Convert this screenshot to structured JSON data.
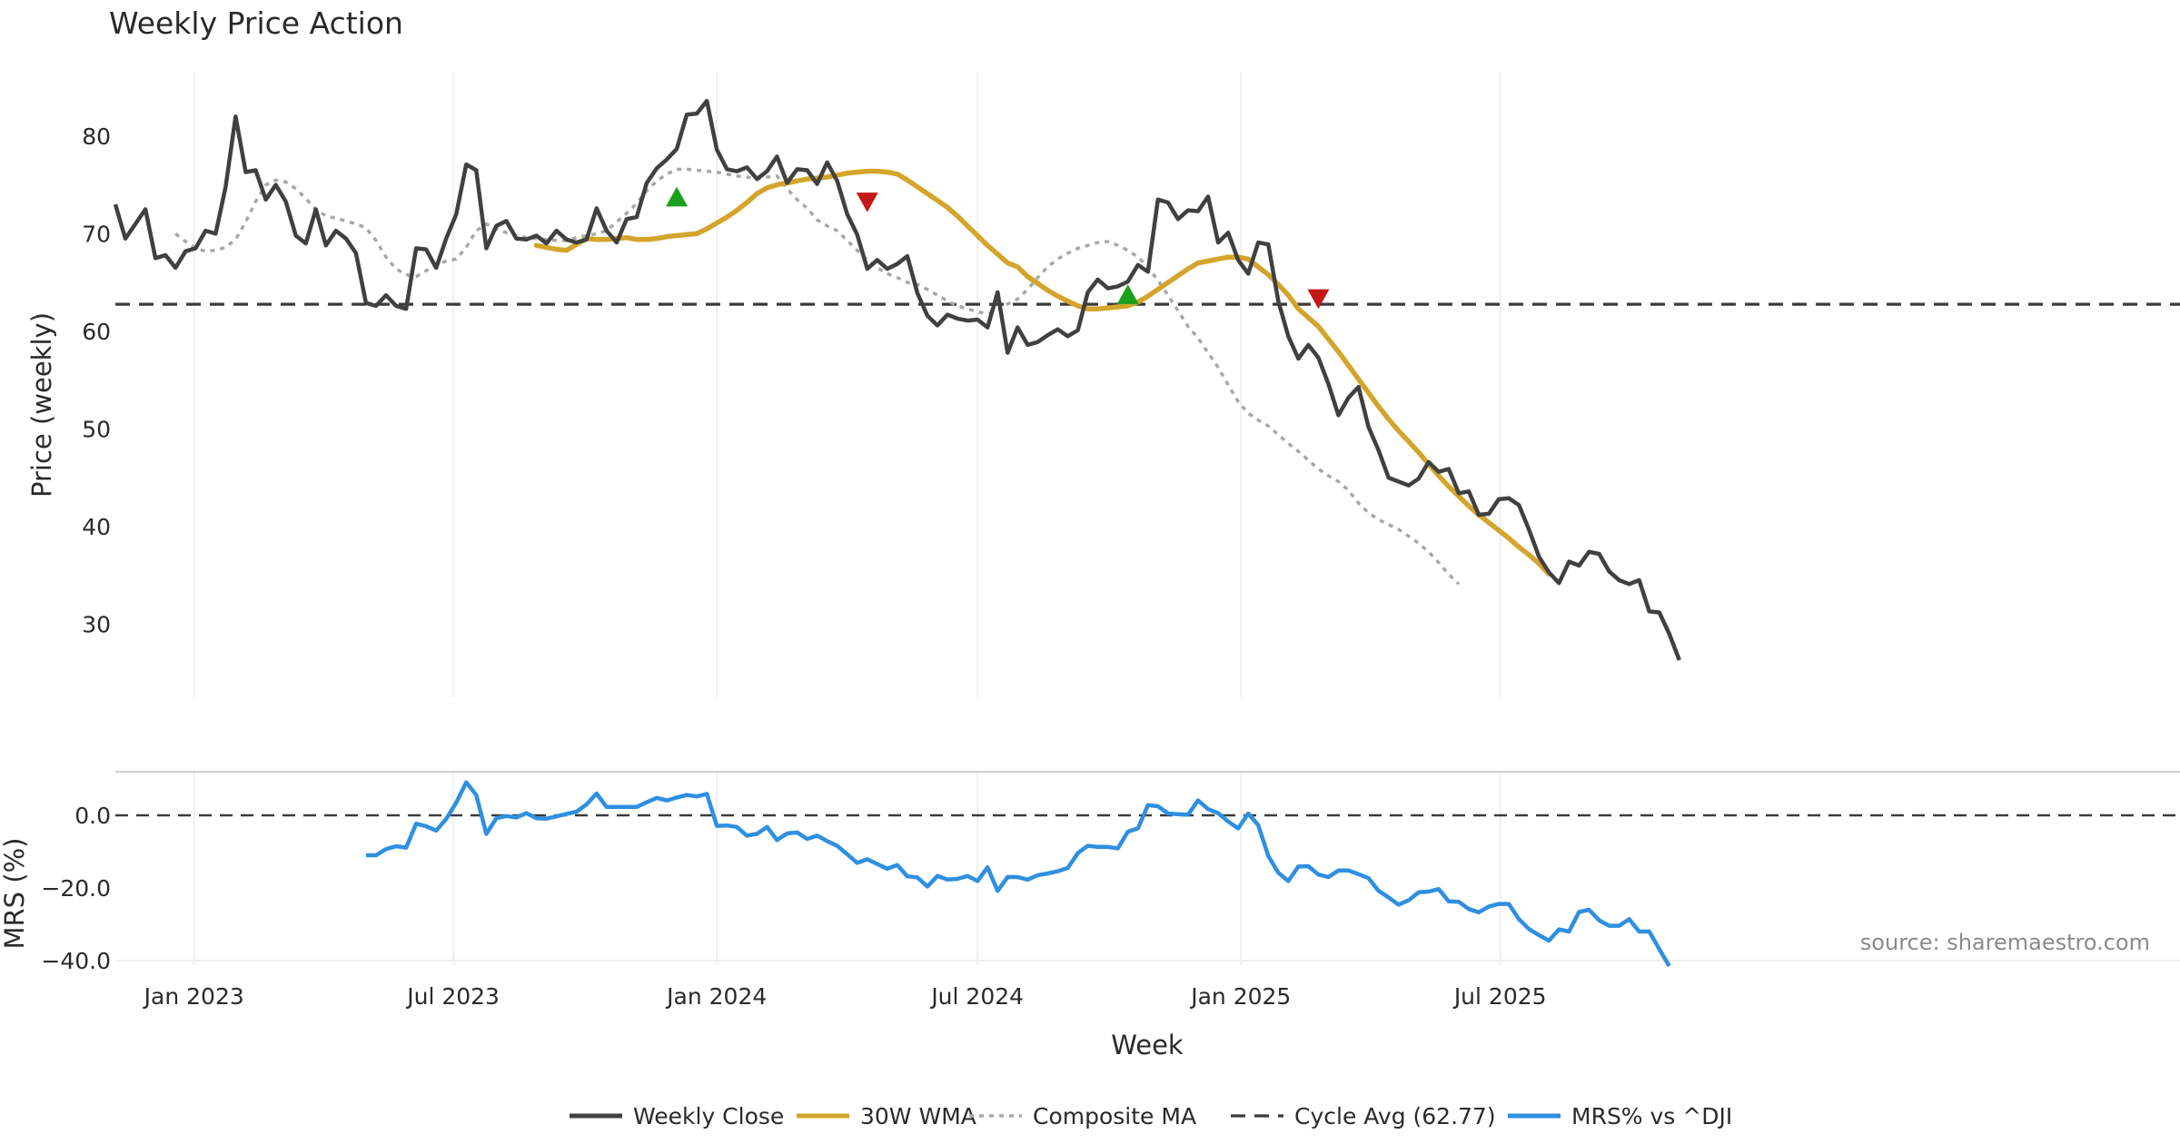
{
  "title": "Weekly Price Action",
  "source": "source: sharemaestro.com",
  "colors": {
    "close": "#404040",
    "wma": "#d4a52c",
    "composite": "#a8a8a8",
    "cycle": "#3a3a3a",
    "mrs": "#2f8fe0",
    "buy": "#1aa01a",
    "sell": "#c41818",
    "grid": "#ebebeb"
  },
  "chart_data": [
    {
      "type": "line",
      "title": "Weekly Price Action",
      "ylabel": "Price (weekly)",
      "ylim": [
        22.5,
        86.5
      ],
      "yticks": [
        30,
        40,
        50,
        60,
        70,
        80
      ],
      "grid": "vertical",
      "x_start": "2022-11-07",
      "x_step_days": 7,
      "cycle_avg": 62.77,
      "series": [
        {
          "name": "Weekly Close",
          "values": [
            73,
            69.5,
            71,
            72.5,
            67.5,
            67.8,
            66.5,
            68.2,
            68.5,
            70.3,
            70,
            74.8,
            82,
            76.3,
            76.5,
            73.5,
            75,
            73.3,
            69.8,
            69,
            72.5,
            68.8,
            70.3,
            69.5,
            68,
            62.9,
            62.6,
            63.7,
            62.6,
            62.3,
            68.5,
            68.4,
            66.5,
            69.5,
            72,
            77.1,
            76.5,
            68.5,
            70.8,
            71.3,
            69.5,
            69.4,
            69.8,
            69,
            70.3,
            69.4,
            69.1,
            69.4,
            72.6,
            70.3,
            69.1,
            71.5,
            71.7,
            75.2,
            76.7,
            77.6,
            78.7,
            82.2,
            82.3,
            83.6,
            78.6,
            76.6,
            76.4,
            76.8,
            75.6,
            76.4,
            77.9,
            75.2,
            76.6,
            76.5,
            75.1,
            77.3,
            75.4,
            72,
            69.9,
            66.4,
            67.3,
            66.4,
            66.9,
            67.7,
            63.9,
            61.6,
            60.6,
            61.7,
            61.3,
            61.1,
            61.2,
            60.4,
            64,
            57.8,
            60.4,
            58.6,
            58.9,
            59.6,
            60.2,
            59.5,
            60.1,
            64,
            65.3,
            64.4,
            64.6,
            65.1,
            66.8,
            66.1,
            73.5,
            73.2,
            71.5,
            72.4,
            72.3,
            73.8,
            69.1,
            70.1,
            67.3,
            65.9,
            69.1,
            68.9,
            63.1,
            59.5,
            57.2,
            58.6,
            57.3,
            54.6,
            51.4,
            53.2,
            54.3,
            50.2,
            47.8,
            45,
            44.6,
            44.2,
            44.9,
            46.6,
            45.6,
            45.9,
            43.4,
            43.6,
            41.2,
            41.3,
            42.8,
            42.9,
            42.2,
            39.7,
            36.9,
            35.3,
            34.2,
            36.4,
            36,
            37.4,
            37.2,
            35.4,
            34.5,
            34.1,
            34.5,
            31.3,
            31.2,
            29,
            26.3
          ]
        },
        {
          "name": "30W WMA",
          "start_index": 42,
          "values": [
            68.8,
            68.6,
            68.4,
            68.3,
            68.9,
            69.5,
            69.4,
            69.4,
            69.5,
            69.6,
            69.4,
            69.4,
            69.5,
            69.7,
            69.8,
            69.9,
            70,
            70.5,
            71.1,
            71.7,
            72.4,
            73.2,
            74.1,
            74.7,
            75,
            75.2,
            75.4,
            75.6,
            75.7,
            75.8,
            76,
            76.2,
            76.3,
            76.4,
            76.4,
            76.3,
            76.1,
            75.5,
            74.8,
            74.1,
            73.4,
            72.7,
            71.8,
            70.8,
            69.8,
            68.8,
            67.9,
            67,
            66.6,
            65.6,
            64.9,
            64.2,
            63.6,
            63.1,
            62.6,
            62.3,
            62.3,
            62.4,
            62.5,
            62.6,
            63,
            63.6,
            64.3,
            65,
            65.7,
            66.4,
            67,
            67.2,
            67.4,
            67.6,
            67.6,
            67.4,
            66.6,
            65.8,
            64.8,
            63.7,
            62.3,
            61.4,
            60.5,
            59.2,
            57.9,
            56.5,
            55.1,
            53.7,
            52.3,
            51,
            49.8,
            48.7,
            47.6,
            46.4,
            45.2,
            44.1,
            43.1,
            42.1,
            41.2,
            40.4,
            39.6,
            38.8,
            37.9,
            37.1,
            36.2,
            35.1
          ]
        },
        {
          "name": "Composite MA",
          "start_index": 6,
          "values": [
            70,
            69.2,
            68.5,
            68.2,
            68.3,
            68.6,
            69.4,
            71.2,
            73.3,
            75,
            75.5,
            75.3,
            74.6,
            73.6,
            72.5,
            71.8,
            71.6,
            71.3,
            71,
            70.6,
            69.3,
            67.6,
            66.4,
            65.8,
            65.6,
            66.2,
            66.8,
            67.2,
            67.4,
            68.6,
            70.3,
            71,
            70.5,
            70.1,
            69.8,
            69.6,
            69.5,
            69.4,
            69.3,
            69.3,
            69.6,
            69.8,
            70,
            70.3,
            71.2,
            72.1,
            73.1,
            74.4,
            75.4,
            76.1,
            76.6,
            76.6,
            76.5,
            76.4,
            76.3,
            76.1,
            75.9,
            75.8,
            75.6,
            75.8,
            75.9,
            74.6,
            73.5,
            72.6,
            71.4,
            70.8,
            70.3,
            69.3,
            68.3,
            67.3,
            66.5,
            65.9,
            65.5,
            65,
            64.8,
            64.3,
            63.7,
            63.1,
            62.6,
            62.3,
            62,
            61.8,
            62.1,
            62.8,
            63.3,
            64.3,
            65.5,
            66.6,
            67.4,
            68,
            68.5,
            68.8,
            69.1,
            69.2,
            68.8,
            68.3,
            67.6,
            66.6,
            65.2,
            63.7,
            62.1,
            60.5,
            59.3,
            57.8,
            56.3,
            54.5,
            52.8,
            51.6,
            50.9,
            50.3,
            49.4,
            48.5,
            47.7,
            46.8,
            45.9,
            45.2,
            44.6,
            43.7,
            42.4,
            41.4,
            40.7,
            40.2,
            39.7,
            39,
            38.3,
            37.4,
            36.3,
            35.1,
            34.1
          ]
        }
      ],
      "markers": [
        {
          "type": "buy",
          "index": 56,
          "y": 73.8
        },
        {
          "type": "sell",
          "index": 75,
          "y": 73.2
        },
        {
          "type": "buy",
          "index": 101,
          "y": 63.8
        },
        {
          "type": "sell",
          "index": 120,
          "y": 63.3
        }
      ]
    },
    {
      "type": "line",
      "ylabel": "MRS (%)",
      "ylim": [
        -41,
        12
      ],
      "yticks": [
        0,
        -20,
        -40
      ],
      "ytick_labels": [
        "0.0",
        "−20.0",
        "−40.0"
      ],
      "zero_line": 0,
      "series": [
        {
          "name": "MRS% vs ^DJI",
          "start_index": 25,
          "values": [
            -11,
            -11,
            -9.3,
            -8.5,
            -8.9,
            -2.3,
            -3,
            -4.2,
            -1,
            3.5,
            9.1,
            5.6,
            -5.1,
            -0.8,
            -0.2,
            -0.6,
            0.6,
            -0.8,
            -0.9,
            -0.3,
            0.4,
            1,
            3,
            6,
            2.3,
            2.3,
            2.3,
            2.3,
            3.6,
            4.8,
            4.1,
            4.9,
            5.6,
            5.2,
            5.9,
            -2.9,
            -2.8,
            -3.2,
            -5.6,
            -5.1,
            -3.2,
            -6.8,
            -5,
            -4.7,
            -6.5,
            -5.6,
            -7.1,
            -8.4,
            -10.7,
            -13.1,
            -12.1,
            -13.4,
            -14.7,
            -13.7,
            -16.8,
            -17.1,
            -19.6,
            -16.7,
            -17.7,
            -17.5,
            -16.7,
            -18.1,
            -14.3,
            -20.8,
            -17,
            -17,
            -17.7,
            -16.5,
            -16,
            -15.4,
            -14.5,
            -10.4,
            -8.4,
            -8.7,
            -8.7,
            -9.1,
            -4.5,
            -3.6,
            2.8,
            2.5,
            0.5,
            0.3,
            0.2,
            4.1,
            1.7,
            0.6,
            -1.7,
            -3.6,
            0.5,
            -2.7,
            -11.2,
            -15.8,
            -18.1,
            -14.1,
            -14,
            -16.3,
            -17,
            -15.2,
            -15.2,
            -16.2,
            -17.3,
            -20.8,
            -22.6,
            -24.6,
            -23.4,
            -21.2,
            -21,
            -20.3,
            -23.7,
            -23.8,
            -25.8,
            -26.7,
            -25.1,
            -24.4,
            -24.4,
            -28.6,
            -31.3,
            -33,
            -34.5,
            -31.4,
            -32,
            -26.6,
            -26,
            -28.9,
            -30.4,
            -30.4,
            -28.6,
            -32,
            -32,
            -36.8,
            -41.5
          ]
        }
      ]
    }
  ],
  "x_axis": {
    "label": "Week",
    "ticks": [
      {
        "date": "2023-01-01",
        "label": "Jan 2023"
      },
      {
        "date": "2023-07-01",
        "label": "Jul 2023"
      },
      {
        "date": "2024-01-01",
        "label": "Jan 2024"
      },
      {
        "date": "2024-07-01",
        "label": "Jul 2024"
      },
      {
        "date": "2025-01-01",
        "label": "Jan 2025"
      },
      {
        "date": "2025-07-01",
        "label": "Jul 2025"
      }
    ]
  },
  "legend": {
    "placement": "bottom-center",
    "items": [
      {
        "label": "Weekly Close",
        "style": "solid",
        "color": "#404040"
      },
      {
        "label": "30W WMA",
        "style": "solid",
        "color": "#d4a52c"
      },
      {
        "label": "Composite MA",
        "style": "dotted",
        "color": "#a8a8a8"
      },
      {
        "label": "Cycle Avg (62.77)",
        "style": "dashed",
        "color": "#3a3a3a"
      },
      {
        "label": "MRS% vs ^DJI",
        "style": "solid",
        "color": "#2f8fe0"
      }
    ]
  }
}
